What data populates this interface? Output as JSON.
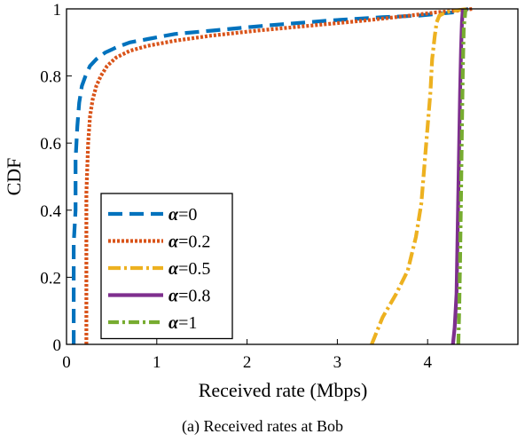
{
  "chart_data": {
    "type": "line",
    "xlabel": "Received rate (Mbps)",
    "ylabel": "CDF",
    "xlim": [
      0,
      5
    ],
    "ylim": [
      0,
      1
    ],
    "xticks": [
      "0",
      "1",
      "2",
      "3",
      "4"
    ],
    "yticks": [
      "0",
      "0.2",
      "0.4",
      "0.6",
      "0.8",
      "1"
    ],
    "grid": false,
    "legend_position": "bottom-left",
    "series": [
      {
        "name": "α=0",
        "symbol": "α",
        "value_label": "=0",
        "color": "#0072BD",
        "dash": "16,8",
        "width": 4.2,
        "x": [
          0.08,
          0.08,
          0.1,
          0.1,
          0.12,
          0.14,
          0.17,
          0.21,
          0.26,
          0.33,
          0.43,
          0.55,
          0.7,
          0.9,
          1.2,
          1.6,
          2.2,
          2.9,
          3.5,
          3.9,
          4.1,
          4.3,
          4.45
        ],
        "y": [
          0.0,
          0.3,
          0.4,
          0.55,
          0.65,
          0.72,
          0.77,
          0.8,
          0.83,
          0.85,
          0.87,
          0.885,
          0.9,
          0.91,
          0.925,
          0.935,
          0.95,
          0.965,
          0.975,
          0.98,
          0.985,
          0.99,
          1.0
        ]
      },
      {
        "name": "α=0.2",
        "symbol": "α",
        "value_label": "=0.2",
        "color": "#D95319",
        "dash": "3,2",
        "width": 4.2,
        "x": [
          0.22,
          0.22,
          0.24,
          0.26,
          0.29,
          0.33,
          0.38,
          0.45,
          0.55,
          0.7,
          0.9,
          1.2,
          1.6,
          2.1,
          2.7,
          3.3,
          3.8,
          4.1,
          4.35,
          4.5
        ],
        "y": [
          0.0,
          0.45,
          0.6,
          0.68,
          0.73,
          0.77,
          0.8,
          0.83,
          0.855,
          0.875,
          0.89,
          0.905,
          0.92,
          0.935,
          0.95,
          0.965,
          0.98,
          0.99,
          0.995,
          1.0
        ]
      },
      {
        "name": "α=0.5",
        "symbol": "α",
        "value_label": "=0.5",
        "color": "#EDB120",
        "dash": "14,4,3,4",
        "width": 4.2,
        "x": [
          3.38,
          3.5,
          3.65,
          3.78,
          3.87,
          3.93,
          3.97,
          4.0,
          4.03,
          4.05,
          4.08,
          4.1,
          4.13,
          4.2,
          4.3,
          4.45
        ],
        "y": [
          0.0,
          0.08,
          0.15,
          0.22,
          0.32,
          0.42,
          0.55,
          0.65,
          0.75,
          0.85,
          0.92,
          0.96,
          0.98,
          0.99,
          0.995,
          1.0
        ]
      },
      {
        "name": "α=0.8",
        "symbol": "α",
        "value_label": "=0.8",
        "color": "#7E2F8E",
        "dash": "",
        "width": 4.2,
        "x": [
          4.28,
          4.3,
          4.32,
          4.33,
          4.34,
          4.35,
          4.36,
          4.37,
          4.38,
          4.39
        ],
        "y": [
          0.0,
          0.05,
          0.15,
          0.3,
          0.45,
          0.6,
          0.75,
          0.88,
          0.96,
          1.0
        ]
      },
      {
        "name": "α=1",
        "symbol": "α",
        "value_label": "=1",
        "color": "#77AC30",
        "dash": "12,4,3,4",
        "width": 4.2,
        "x": [
          4.34,
          4.35,
          4.36,
          4.37,
          4.38,
          4.39,
          4.4,
          4.42
        ],
        "y": [
          0.0,
          0.1,
          0.25,
          0.45,
          0.65,
          0.82,
          0.94,
          1.0
        ]
      }
    ]
  },
  "caption": "(a) Received rates at Bob"
}
